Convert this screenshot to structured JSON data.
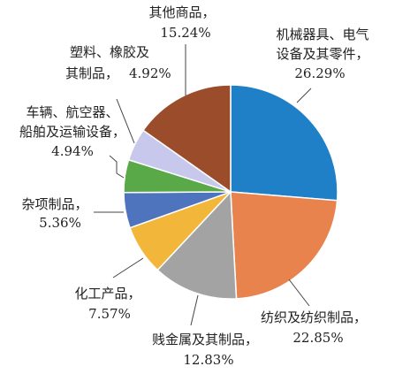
{
  "chart_data": {
    "type": "pie",
    "categories": [
      [
        "机械器具、电气",
        "设备及其零件，"
      ],
      [
        "纺织及纺织制品，"
      ],
      [
        "贱金属及其制品，"
      ],
      [
        "化工产品，"
      ],
      [
        "杂项制品，"
      ],
      [
        "车辆、航空器、",
        "船舶及运输设备，"
      ],
      [
        "塑料、橡胶及",
        "其制品，"
      ],
      [
        "其他商品，"
      ]
    ],
    "values": [
      26.29,
      22.85,
      12.83,
      7.57,
      5.36,
      4.94,
      4.92,
      15.24
    ],
    "value_labels": [
      "26.29%",
      "22.85%",
      "12.83%",
      "7.57%",
      "5.36%",
      "4.94%",
      "4.92%",
      "15.24%"
    ],
    "colors": [
      "#1f80c8",
      "#e8834e",
      "#a3a3a3",
      "#f2b63b",
      "#4e74bd",
      "#5aa948",
      "#c8c8ec",
      "#9b4d2b"
    ]
  }
}
